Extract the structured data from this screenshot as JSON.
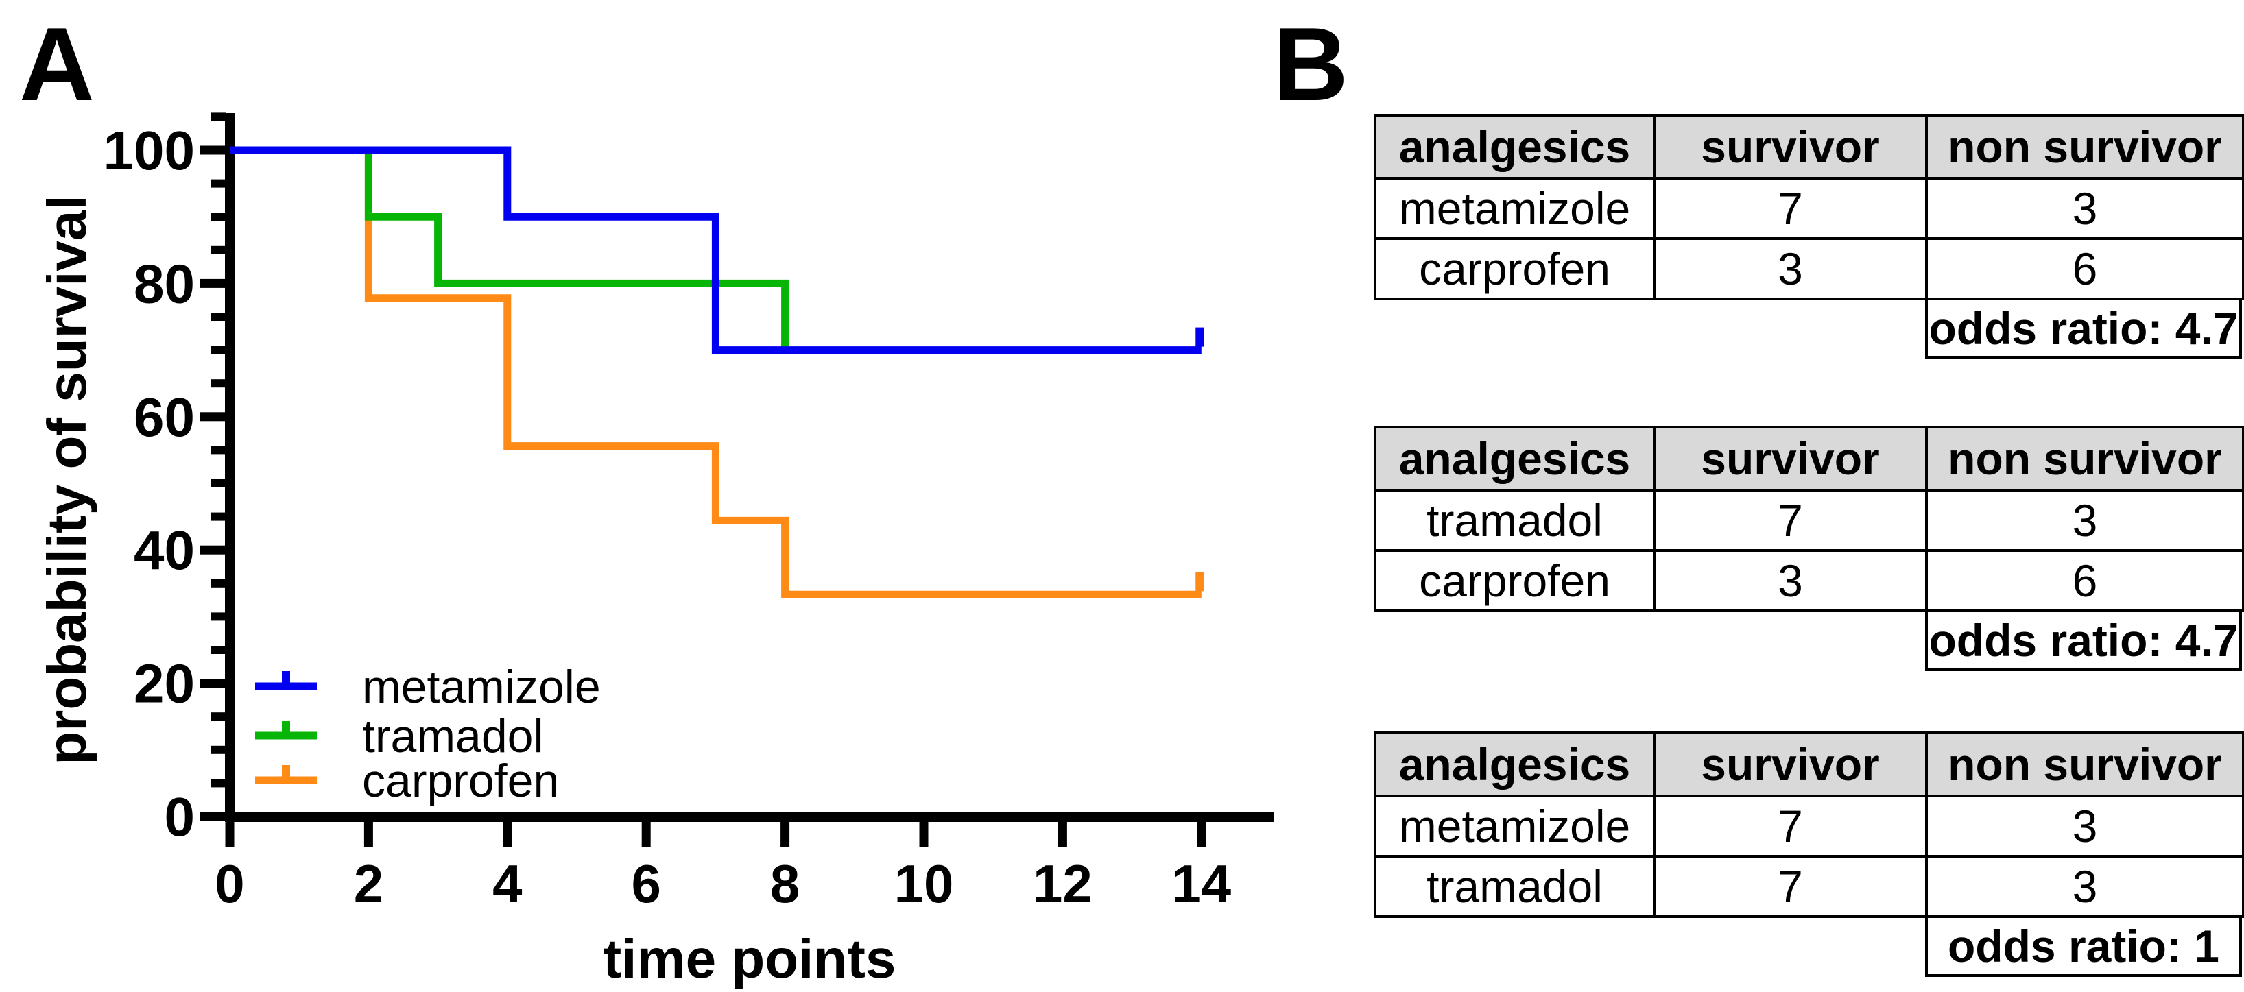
{
  "figure": {
    "panel_a_label": "A",
    "panel_b_label": "B"
  },
  "chart_data": {
    "type": "line",
    "step": true,
    "title": "",
    "xlabel": "time points",
    "ylabel": "probability of survival",
    "xlim": [
      0,
      15
    ],
    "ylim": [
      0,
      105
    ],
    "x_ticks": [
      "0",
      "2",
      "4",
      "6",
      "8",
      "10",
      "12",
      "14"
    ],
    "y_ticks": [
      "0",
      "20",
      "40",
      "60",
      "80",
      "100"
    ],
    "y_minor_tick_step": 5,
    "grid": false,
    "legend_position": "inside lower-left",
    "series": [
      {
        "name": "metamizole",
        "color": "#0101f0",
        "points": [
          [
            0,
            100
          ],
          [
            4,
            100
          ],
          [
            4,
            90
          ],
          [
            7,
            90
          ],
          [
            7,
            70
          ],
          [
            14,
            70
          ]
        ],
        "censored_at_end": true
      },
      {
        "name": "tramadol",
        "color": "#07b507",
        "points": [
          [
            0,
            100
          ],
          [
            2,
            100
          ],
          [
            2,
            90
          ],
          [
            3,
            90
          ],
          [
            3,
            80
          ],
          [
            8,
            80
          ],
          [
            8,
            70
          ]
        ],
        "censored_at_end": false
      },
      {
        "name": "carprofen",
        "color": "#ff8a16",
        "points": [
          [
            0,
            100
          ],
          [
            2,
            100
          ],
          [
            2,
            77.8
          ],
          [
            4,
            77.8
          ],
          [
            4,
            55.6
          ],
          [
            7,
            55.6
          ],
          [
            7,
            44.4
          ],
          [
            8,
            44.4
          ],
          [
            8,
            33.3
          ],
          [
            14,
            33.3
          ]
        ],
        "censored_at_end": true
      }
    ]
  },
  "panel_b": {
    "tables": [
      {
        "headers": [
          "analgesics",
          "survivor",
          "non survivor"
        ],
        "rows": [
          [
            "metamizole",
            "7",
            "3"
          ],
          [
            "carprofen",
            "3",
            "6"
          ]
        ],
        "odds_ratio": "odds ratio: 4.7"
      },
      {
        "headers": [
          "analgesics",
          "survivor",
          "non survivor"
        ],
        "rows": [
          [
            "tramadol",
            "7",
            "3"
          ],
          [
            "carprofen",
            "3",
            "6"
          ]
        ],
        "odds_ratio": "odds ratio: 4.7"
      },
      {
        "headers": [
          "analgesics",
          "survivor",
          "non survivor"
        ],
        "rows": [
          [
            "metamizole",
            "7",
            "3"
          ],
          [
            "tramadol",
            "7",
            "3"
          ]
        ],
        "odds_ratio": "odds ratio: 1"
      }
    ]
  }
}
